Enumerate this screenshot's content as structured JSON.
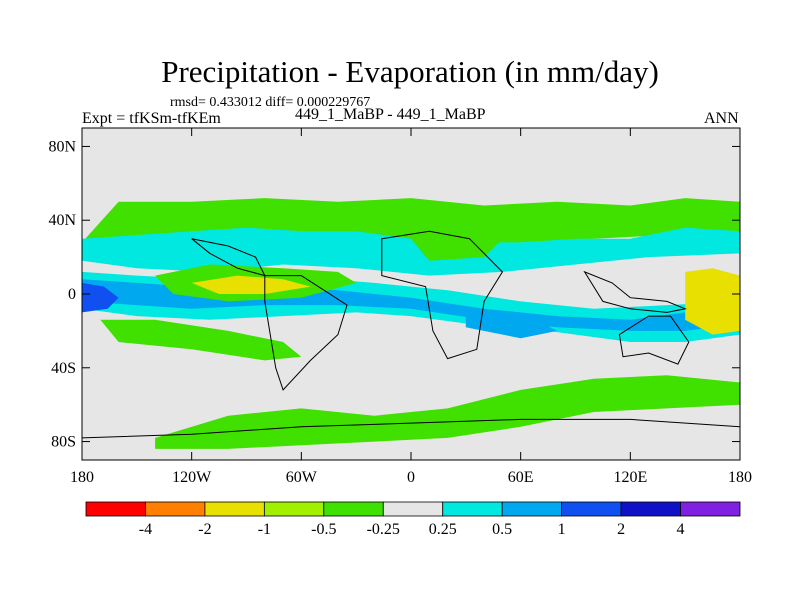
{
  "chart_data": {
    "type": "heatmap",
    "title": "Precipitation - Evaporation (in mm/day)",
    "stats_line": "rmsd= 0.433012 diff= 0.000229767",
    "left_label": "Expt = tfKSm-tfKEm",
    "center_label": "449_1_MaBP - 449_1_MaBP",
    "right_label": "ANN",
    "x_axis": {
      "range": [
        -180,
        180
      ],
      "tick_values": [
        -180,
        -120,
        -60,
        0,
        60,
        120,
        180
      ],
      "tick_labels": [
        "180",
        "120W",
        "60W",
        "0",
        "60E",
        "120E",
        "180"
      ]
    },
    "y_axis": {
      "range": [
        -90,
        90
      ],
      "tick_values": [
        80,
        40,
        0,
        -40,
        -80
      ],
      "tick_labels": [
        "80N",
        "40N",
        "0",
        "40S",
        "80S"
      ]
    },
    "colorbar": {
      "colors": [
        "#ff0000",
        "#ff8000",
        "#e8e000",
        "#a0f000",
        "#40e000",
        "#e6e6e6",
        "#00e8e0",
        "#00a8f0",
        "#1050f0",
        "#1010c8",
        "#8020e0"
      ],
      "labels": [
        "-4",
        "-2",
        "-1",
        "-0.5",
        "-0.25",
        "0.25",
        "0.5",
        "1",
        "2",
        "4"
      ]
    },
    "background_color": "#e6e6e6",
    "regions": [
      {
        "name": "north-subtropical-band-green",
        "level": "-0.5",
        "color": "#40e000",
        "points": [
          [
            -180,
            28
          ],
          [
            -150,
            24
          ],
          [
            -100,
            26
          ],
          [
            -60,
            30
          ],
          [
            -20,
            28
          ],
          [
            20,
            26
          ],
          [
            60,
            28
          ],
          [
            100,
            30
          ],
          [
            140,
            32
          ],
          [
            180,
            30
          ],
          [
            180,
            50
          ],
          [
            150,
            52
          ],
          [
            120,
            48
          ],
          [
            80,
            50
          ],
          [
            40,
            48
          ],
          [
            0,
            52
          ],
          [
            -40,
            50
          ],
          [
            -80,
            52
          ],
          [
            -120,
            50
          ],
          [
            -160,
            50
          ]
        ]
      },
      {
        "name": "north-band-cyan",
        "level": "0.25",
        "color": "#00e8e0",
        "points": [
          [
            -180,
            18
          ],
          [
            -150,
            14
          ],
          [
            -110,
            12
          ],
          [
            -70,
            16
          ],
          [
            -30,
            14
          ],
          [
            10,
            10
          ],
          [
            50,
            12
          ],
          [
            90,
            16
          ],
          [
            130,
            20
          ],
          [
            180,
            22
          ],
          [
            180,
            34
          ],
          [
            150,
            36
          ],
          [
            120,
            30
          ],
          [
            90,
            30
          ],
          [
            60,
            28
          ],
          [
            30,
            28
          ],
          [
            0,
            30
          ],
          [
            -30,
            34
          ],
          [
            -60,
            34
          ],
          [
            -90,
            36
          ],
          [
            -120,
            34
          ],
          [
            -150,
            32
          ],
          [
            -180,
            30
          ]
        ]
      },
      {
        "name": "equatorial-band-cyan",
        "level": "0.25",
        "color": "#00e8e0",
        "points": [
          [
            -180,
            12
          ],
          [
            -150,
            10
          ],
          [
            -110,
            8
          ],
          [
            -70,
            10
          ],
          [
            -20,
            6
          ],
          [
            20,
            2
          ],
          [
            60,
            -4
          ],
          [
            100,
            -8
          ],
          [
            140,
            -6
          ],
          [
            180,
            -4
          ],
          [
            180,
            -22
          ],
          [
            150,
            -26
          ],
          [
            120,
            -26
          ],
          [
            90,
            -22
          ],
          [
            60,
            -18
          ],
          [
            30,
            -16
          ],
          [
            0,
            -12
          ],
          [
            -30,
            -10
          ],
          [
            -70,
            -12
          ],
          [
            -110,
            -14
          ],
          [
            -150,
            -12
          ],
          [
            -180,
            -8
          ]
        ]
      },
      {
        "name": "equatorial-band-blue",
        "level": "0.5",
        "color": "#00a8f0",
        "points": [
          [
            -180,
            8
          ],
          [
            -150,
            6
          ],
          [
            -120,
            4
          ],
          [
            -80,
            4
          ],
          [
            -40,
            2
          ],
          [
            0,
            -2
          ],
          [
            40,
            -8
          ],
          [
            80,
            -12
          ],
          [
            120,
            -14
          ],
          [
            150,
            -10
          ],
          [
            180,
            -6
          ],
          [
            180,
            -16
          ],
          [
            150,
            -20
          ],
          [
            120,
            -20
          ],
          [
            80,
            -18
          ],
          [
            40,
            -14
          ],
          [
            0,
            -8
          ],
          [
            -40,
            -6
          ],
          [
            -80,
            -6
          ],
          [
            -120,
            -8
          ],
          [
            -150,
            -6
          ],
          [
            -180,
            -4
          ]
        ]
      },
      {
        "name": "west-pacific-blue",
        "level": "1",
        "color": "#1050f0",
        "points": [
          [
            -180,
            6
          ],
          [
            -168,
            4
          ],
          [
            -160,
            -2
          ],
          [
            -166,
            -8
          ],
          [
            -180,
            -10
          ]
        ]
      },
      {
        "name": "central-pacific-green",
        "level": "-0.5",
        "color": "#40e000",
        "points": [
          [
            -140,
            10
          ],
          [
            -110,
            16
          ],
          [
            -70,
            14
          ],
          [
            -40,
            12
          ],
          [
            -30,
            6
          ],
          [
            -60,
            -2
          ],
          [
            -100,
            -4
          ],
          [
            -130,
            0
          ]
        ]
      },
      {
        "name": "central-pacific-yellow",
        "level": "-1",
        "color": "#e8e000",
        "points": [
          [
            -120,
            6
          ],
          [
            -95,
            10
          ],
          [
            -70,
            8
          ],
          [
            -55,
            4
          ],
          [
            -80,
            0
          ],
          [
            -105,
            0
          ]
        ]
      },
      {
        "name": "south-pacific-green",
        "level": "-0.5",
        "color": "#40e000",
        "points": [
          [
            -170,
            -14
          ],
          [
            -140,
            -14
          ],
          [
            -100,
            -20
          ],
          [
            -70,
            -26
          ],
          [
            -60,
            -34
          ],
          [
            -80,
            -36
          ],
          [
            -120,
            -30
          ],
          [
            -160,
            -26
          ]
        ]
      },
      {
        "name": "southern-ocean-green",
        "level": "-0.5",
        "color": "#40e000",
        "points": [
          [
            -140,
            -78
          ],
          [
            -100,
            -66
          ],
          [
            -60,
            -62
          ],
          [
            -20,
            -66
          ],
          [
            20,
            -62
          ],
          [
            60,
            -52
          ],
          [
            100,
            -46
          ],
          [
            140,
            -44
          ],
          [
            180,
            -48
          ],
          [
            180,
            -60
          ],
          [
            140,
            -62
          ],
          [
            100,
            -64
          ],
          [
            60,
            -72
          ],
          [
            20,
            -78
          ],
          [
            -20,
            -80
          ],
          [
            -60,
            -82
          ],
          [
            -100,
            -84
          ],
          [
            -140,
            -84
          ]
        ]
      },
      {
        "name": "west-pacific-warm-pool",
        "level": "-1",
        "color": "#e8e000",
        "points": [
          [
            150,
            12
          ],
          [
            165,
            14
          ],
          [
            180,
            10
          ],
          [
            180,
            -20
          ],
          [
            165,
            -22
          ],
          [
            150,
            -14
          ]
        ]
      },
      {
        "name": "south-atlantic-blue",
        "level": "0.5",
        "color": "#00a8f0",
        "points": [
          [
            30,
            -8
          ],
          [
            60,
            -10
          ],
          [
            80,
            -20
          ],
          [
            60,
            -24
          ],
          [
            30,
            -18
          ]
        ]
      },
      {
        "name": "asia-green",
        "level": "-0.5",
        "color": "#40e000",
        "points": [
          [
            0,
            30
          ],
          [
            20,
            34
          ],
          [
            50,
            30
          ],
          [
            40,
            20
          ],
          [
            10,
            18
          ]
        ]
      }
    ],
    "coastlines": [
      {
        "name": "africa",
        "points": [
          [
            -16,
            30
          ],
          [
            10,
            34
          ],
          [
            32,
            30
          ],
          [
            50,
            12
          ],
          [
            40,
            -4
          ],
          [
            36,
            -30
          ],
          [
            20,
            -35
          ],
          [
            12,
            -20
          ],
          [
            8,
            4
          ],
          [
            -16,
            10
          ]
        ]
      },
      {
        "name": "south-america",
        "points": [
          [
            -80,
            10
          ],
          [
            -60,
            10
          ],
          [
            -35,
            -6
          ],
          [
            -40,
            -22
          ],
          [
            -55,
            -36
          ],
          [
            -70,
            -52
          ],
          [
            -74,
            -40
          ],
          [
            -80,
            -4
          ]
        ]
      },
      {
        "name": "australia",
        "points": [
          [
            114,
            -22
          ],
          [
            130,
            -12
          ],
          [
            142,
            -12
          ],
          [
            152,
            -26
          ],
          [
            146,
            -38
          ],
          [
            130,
            -32
          ],
          [
            116,
            -34
          ]
        ]
      },
      {
        "name": "antarctica",
        "points": [
          [
            -180,
            -78
          ],
          [
            -120,
            -76
          ],
          [
            -60,
            -72
          ],
          [
            0,
            -70
          ],
          [
            60,
            -68
          ],
          [
            120,
            -68
          ],
          [
            180,
            -72
          ],
          [
            180,
            -90
          ],
          [
            -180,
            -90
          ]
        ]
      },
      {
        "name": "maritime-continent",
        "points": [
          [
            95,
            12
          ],
          [
            110,
            6
          ],
          [
            120,
            -2
          ],
          [
            140,
            -4
          ],
          [
            150,
            -8
          ],
          [
            140,
            -10
          ],
          [
            120,
            -8
          ],
          [
            105,
            -4
          ]
        ]
      },
      {
        "name": "north-america-tip",
        "points": [
          [
            -120,
            30
          ],
          [
            -100,
            26
          ],
          [
            -85,
            20
          ],
          [
            -80,
            10
          ],
          [
            -95,
            14
          ],
          [
            -110,
            22
          ]
        ]
      }
    ]
  }
}
